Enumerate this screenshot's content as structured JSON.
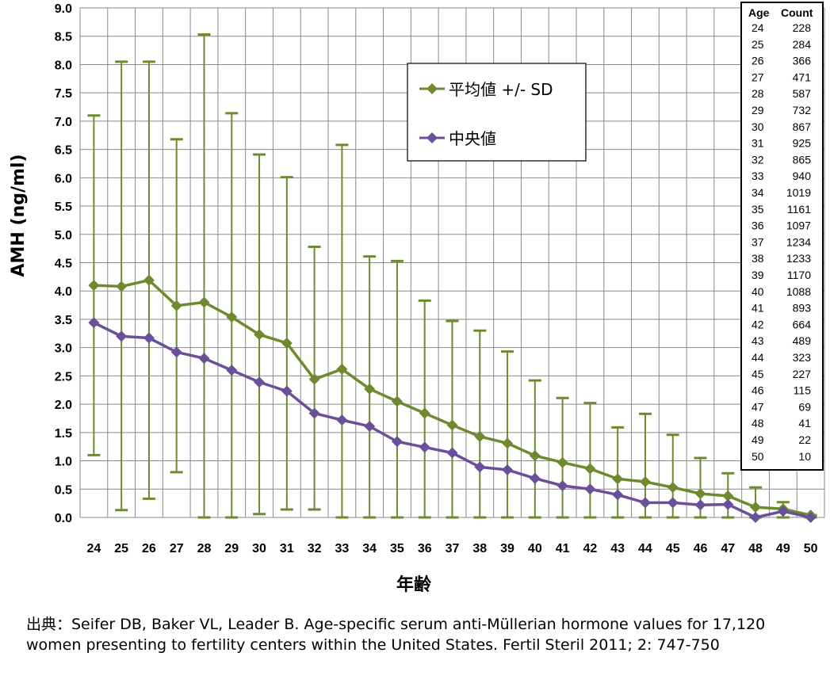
{
  "chart_data": {
    "type": "line",
    "xlabel": "年齢",
    "ylabel": "AMH (ng/ml)",
    "ylim": [
      0,
      9
    ],
    "yticks": [
      "0.0",
      "0.5",
      "1.0",
      "1.5",
      "2.0",
      "2.5",
      "3.0",
      "3.5",
      "4.0",
      "4.5",
      "5.0",
      "5.5",
      "6.0",
      "6.5",
      "7.0",
      "7.5",
      "8.0",
      "8.5",
      "9.0"
    ],
    "x": [
      24,
      25,
      26,
      27,
      28,
      29,
      30,
      31,
      32,
      33,
      34,
      35,
      36,
      37,
      38,
      39,
      40,
      41,
      42,
      43,
      44,
      45,
      46,
      47,
      48,
      49,
      50
    ],
    "grid": "horizontal and vertical",
    "legend_position": "top-center",
    "series": [
      {
        "name": "平均値 +/- SD",
        "color": "#6f8a2e",
        "marker": "diamond",
        "values": [
          4.1,
          4.08,
          4.19,
          3.74,
          3.8,
          3.54,
          3.23,
          3.08,
          2.44,
          2.62,
          2.27,
          2.05,
          1.84,
          1.63,
          1.43,
          1.31,
          1.09,
          0.97,
          0.86,
          0.68,
          0.63,
          0.53,
          0.42,
          0.38,
          0.18,
          0.15,
          0.04
        ],
        "error_upper": [
          7.1,
          8.05,
          8.05,
          6.68,
          8.53,
          7.14,
          6.41,
          6.01,
          4.78,
          6.58,
          4.61,
          4.53,
          3.83,
          3.47,
          3.3,
          2.93,
          2.42,
          2.11,
          2.02,
          1.59,
          1.83,
          1.46,
          1.05,
          0.78,
          0.53,
          0.27,
          0.04
        ],
        "error_lower": [
          1.1,
          0.13,
          0.33,
          0.8,
          0,
          0,
          0.06,
          0.14,
          0.14,
          0,
          0,
          0,
          0,
          0,
          0,
          0,
          0,
          0,
          0,
          0,
          0,
          0,
          0,
          0,
          0,
          0,
          0
        ]
      },
      {
        "name": "中央値",
        "color": "#6a4f9b",
        "marker": "diamond",
        "values": [
          3.44,
          3.2,
          3.17,
          2.92,
          2.81,
          2.6,
          2.39,
          2.23,
          1.84,
          1.72,
          1.61,
          1.34,
          1.24,
          1.14,
          0.89,
          0.84,
          0.69,
          0.56,
          0.5,
          0.4,
          0.26,
          0.26,
          0.22,
          0.23,
          0.0,
          0.11,
          0.0
        ]
      }
    ],
    "table": {
      "headers": [
        "Age",
        "Count"
      ],
      "rows": [
        [
          "24",
          "228"
        ],
        [
          "25",
          "284"
        ],
        [
          "26",
          "366"
        ],
        [
          "27",
          "471"
        ],
        [
          "28",
          "587"
        ],
        [
          "29",
          "732"
        ],
        [
          "30",
          "867"
        ],
        [
          "31",
          "925"
        ],
        [
          "32",
          "865"
        ],
        [
          "33",
          "940"
        ],
        [
          "34",
          "1019"
        ],
        [
          "35",
          "1161"
        ],
        [
          "36",
          "1097"
        ],
        [
          "37",
          "1234"
        ],
        [
          "38",
          "1233"
        ],
        [
          "39",
          "1170"
        ],
        [
          "40",
          "1088"
        ],
        [
          "41",
          "893"
        ],
        [
          "42",
          "664"
        ],
        [
          "43",
          "489"
        ],
        [
          "44",
          "323"
        ],
        [
          "45",
          "227"
        ],
        [
          "46",
          "115"
        ],
        [
          "47",
          "69"
        ],
        [
          "48",
          "41"
        ],
        [
          "49",
          "22"
        ],
        [
          "50",
          "10"
        ]
      ]
    }
  },
  "citation": "出典：Seifer DB, Baker VL, Leader B. Age-specific serum anti-Müllerian hormone values for 17,120 women presenting to fertility centers within the United States. Fertil Steril 2011; 2: 747-750"
}
